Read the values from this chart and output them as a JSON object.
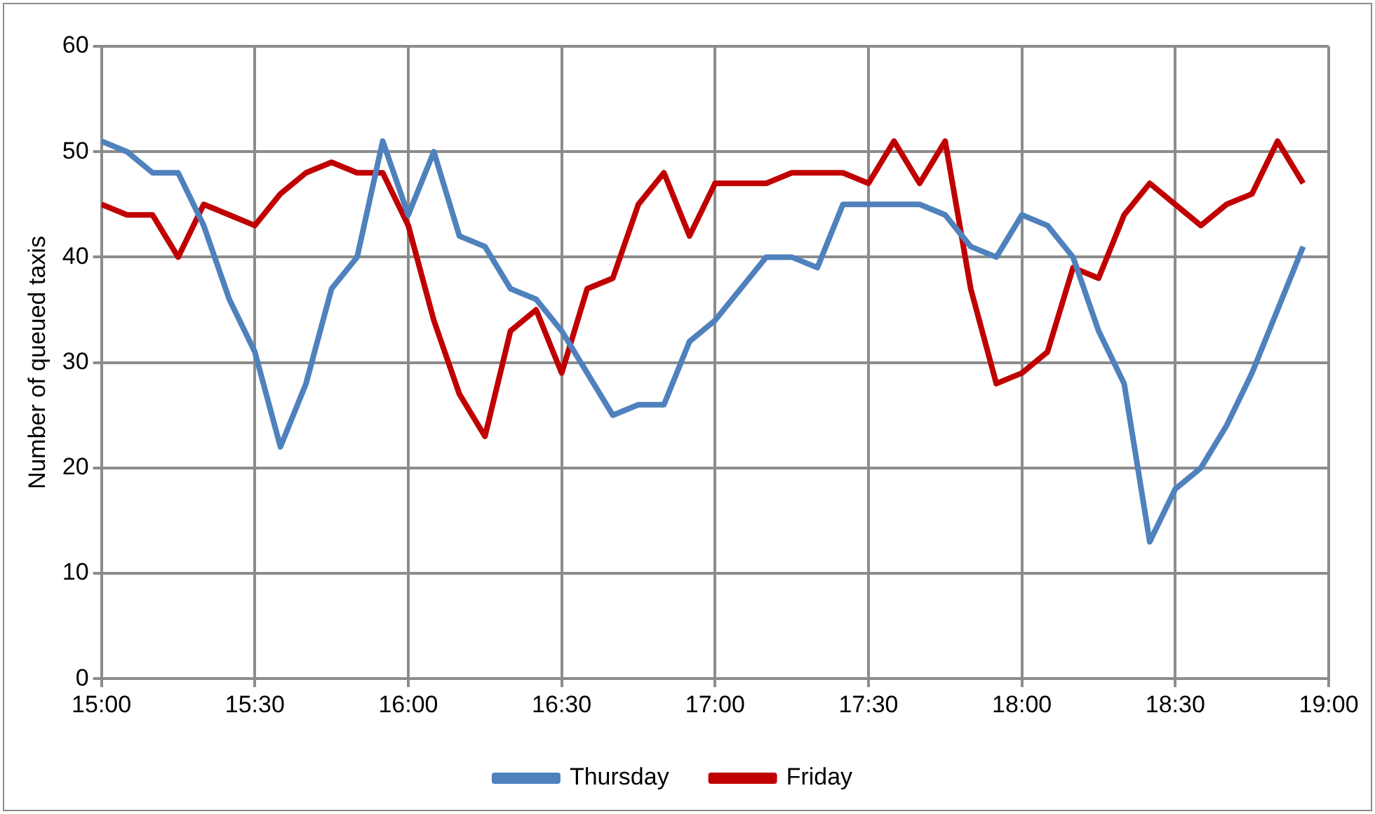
{
  "chart_data": {
    "type": "line",
    "ylabel": "Number of queued taxis",
    "x": [
      15,
      15.0833,
      15.1667,
      15.25,
      15.3333,
      15.4167,
      15.5,
      15.5833,
      15.6667,
      15.75,
      15.8333,
      15.9167,
      16,
      16.0833,
      16.1667,
      16.25,
      16.3333,
      16.4167,
      16.5,
      16.5833,
      16.6667,
      16.75,
      16.8333,
      16.9167,
      17,
      17.0833,
      17.1667,
      17.25,
      17.3333,
      17.4167,
      17.5,
      17.5833,
      17.6667,
      17.75,
      17.8333,
      17.9167,
      18,
      18.0833,
      18.1667,
      18.25,
      18.3333,
      18.4167,
      18.5,
      18.5833,
      18.6667,
      18.75,
      18.8333,
      18.9167
    ],
    "series": [
      {
        "name": "Thursday",
        "color": "#4f81bd",
        "values": [
          51,
          50,
          48,
          48,
          43,
          36,
          31,
          22,
          28,
          37,
          40,
          51,
          44,
          50,
          42,
          41,
          37,
          36,
          33,
          29,
          25,
          26,
          26,
          32,
          34,
          37,
          40,
          40,
          39,
          45,
          45,
          45,
          45,
          44,
          41,
          40,
          44,
          43,
          40,
          33,
          28,
          13,
          18,
          20,
          24,
          29,
          35,
          41
        ]
      },
      {
        "name": "Friday",
        "color": "#c00000",
        "values": [
          45,
          44,
          44,
          40,
          45,
          44,
          43,
          46,
          48,
          49,
          48,
          48,
          43,
          34,
          27,
          23,
          33,
          35,
          29,
          37,
          38,
          45,
          48,
          42,
          47,
          47,
          47,
          48,
          48,
          48,
          47,
          51,
          47,
          51,
          37,
          28,
          29,
          31,
          39,
          38,
          44,
          47,
          45,
          43,
          45,
          46,
          51,
          47
        ]
      }
    ],
    "xlim": [
      15,
      19
    ],
    "xticks": [
      {
        "value": 15,
        "label": "15:00"
      },
      {
        "value": 15.5,
        "label": "15:30"
      },
      {
        "value": 16,
        "label": "16:00"
      },
      {
        "value": 16.5,
        "label": "16:30"
      },
      {
        "value": 17,
        "label": "17:00"
      },
      {
        "value": 17.5,
        "label": "17:30"
      },
      {
        "value": 18,
        "label": "18:00"
      },
      {
        "value": 18.5,
        "label": "18:30"
      },
      {
        "value": 19,
        "label": "19:00"
      }
    ],
    "ylim": [
      0,
      60
    ],
    "yticks": [
      0,
      10,
      20,
      30,
      40,
      50,
      60
    ],
    "grid": true,
    "legend": "bottom",
    "marker": "none",
    "line_style": "solid"
  }
}
